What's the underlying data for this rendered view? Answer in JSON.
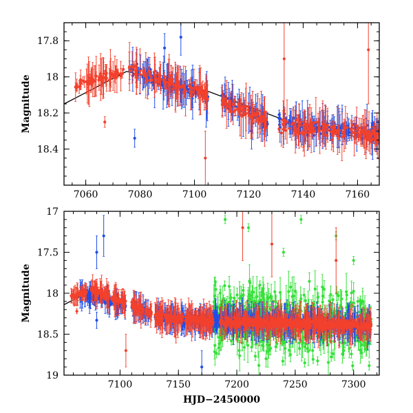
{
  "chart_data": [
    {
      "type": "scatter",
      "panel": "top",
      "title": "",
      "xlabel": "",
      "ylabel": "Magnitude",
      "xlim": [
        7052,
        7168
      ],
      "ylim": [
        17.7,
        18.6
      ],
      "y_inverted": true,
      "xticks": [
        "7060",
        "7080",
        "7100",
        "7120",
        "7140",
        "7160"
      ],
      "yticks": [
        "17.8",
        "18",
        "18.2",
        "18.4"
      ],
      "model_line": {
        "name": "model",
        "color": "#000000",
        "points": [
          [
            7052,
            18.15
          ],
          [
            7075,
            17.97
          ],
          [
            7105,
            18.08
          ],
          [
            7135,
            18.25
          ],
          [
            7168,
            18.36
          ]
        ]
      },
      "series": [
        {
          "name": "blue",
          "color": "#1f4ee6",
          "segments": [
            [
              7076,
              7105,
              17.95,
              18.12,
              0.05,
              0.02,
              0.14
            ],
            [
              7110,
              7127,
              18.12,
              18.25,
              0.05,
              0.02,
              0.14
            ],
            [
              7131,
              7168,
              18.25,
              18.32,
              0.06,
              0.02,
              0.14
            ]
          ],
          "outliers": [
            [
              7078,
              18.34,
              0.05
            ],
            [
              7089,
              17.84,
              0.08
            ],
            [
              7095,
              17.78,
              0.1
            ],
            [
              7121,
              18.3,
              0.1
            ]
          ]
        },
        {
          "name": "red",
          "color": "#f2412d",
          "segments": [
            [
              7056,
              7074,
              18.05,
              17.97,
              0.04,
              0.02,
              0.14
            ],
            [
              7076,
              7105,
              17.95,
              18.1,
              0.05,
              0.02,
              0.14
            ],
            [
              7110,
              7127,
              18.13,
              18.25,
              0.05,
              0.02,
              0.14
            ],
            [
              7131,
              7168,
              18.26,
              18.33,
              0.06,
              0.02,
              0.14
            ]
          ],
          "outliers": [
            [
              7067,
              18.25,
              0.03
            ],
            [
              7104,
              18.45,
              0.15
            ],
            [
              7133,
              17.9,
              0.3
            ],
            [
              7164,
              17.85,
              0.3
            ]
          ]
        }
      ]
    },
    {
      "type": "scatter",
      "panel": "bottom",
      "title": "",
      "xlabel": "HJD−2450000",
      "ylabel": "Magnitude",
      "xlim": [
        7052,
        7322
      ],
      "ylim": [
        17.0,
        19.0
      ],
      "y_inverted": true,
      "xticks": [
        "7100",
        "7150",
        "7200",
        "7250",
        "7300"
      ],
      "yticks": [
        "17",
        "17.5",
        "18",
        "18.5",
        "19"
      ],
      "model_line": {
        "name": "model",
        "color": "#000000",
        "points": [
          [
            7052,
            18.14
          ],
          [
            7075,
            17.97
          ],
          [
            7100,
            18.12
          ]
        ]
      },
      "series": [
        {
          "name": "green",
          "color": "#36e03a",
          "segments": [
            [
              7180,
              7315,
              18.3,
              18.4,
              0.6,
              0.05,
              0.25
            ]
          ],
          "outliers": [
            [
              7190,
              17.1,
              0.05
            ],
            [
              7210,
              17.2,
              0.05
            ],
            [
              7240,
              17.5,
              0.05
            ],
            [
              7255,
              17.1,
              0.05
            ],
            [
              7285,
              17.3,
              0.05
            ],
            [
              7300,
              17.6,
              0.05
            ],
            [
              7225,
              18.8,
              0.1
            ],
            [
              7265,
              18.7,
              0.1
            ]
          ]
        },
        {
          "name": "blue",
          "color": "#1f4ee6",
          "segments": [
            [
              7065,
              7105,
              18.0,
              18.15,
              0.06,
              0.02,
              0.2
            ],
            [
              7110,
              7127,
              18.15,
              18.25,
              0.06,
              0.02,
              0.2
            ],
            [
              7130,
              7180,
              18.28,
              18.35,
              0.07,
              0.03,
              0.2
            ],
            [
              7180,
              7315,
              18.32,
              18.4,
              0.1,
              0.03,
              0.25
            ]
          ],
          "outliers": [
            [
              7080,
              17.5,
              0.2
            ],
            [
              7080,
              18.33,
              0.1
            ],
            [
              7086,
              17.3,
              0.25
            ],
            [
              7170,
              18.9,
              0.2
            ]
          ]
        },
        {
          "name": "red",
          "color": "#f2412d",
          "segments": [
            [
              7058,
              7072,
              18.05,
              17.98,
              0.04,
              0.02,
              0.15
            ],
            [
              7075,
              7105,
              17.95,
              18.12,
              0.05,
              0.02,
              0.2
            ],
            [
              7110,
              7127,
              18.15,
              18.25,
              0.06,
              0.02,
              0.2
            ],
            [
              7130,
              7180,
              18.28,
              18.35,
              0.07,
              0.03,
              0.25
            ],
            [
              7185,
              7315,
              18.34,
              18.4,
              0.08,
              0.03,
              0.25
            ]
          ],
          "outliers": [
            [
              7063,
              18.22,
              0.03
            ],
            [
              7105,
              18.7,
              0.2
            ],
            [
              7205,
              17.2,
              0.4
            ],
            [
              7230,
              17.4,
              0.4
            ],
            [
              7285,
              17.6,
              0.4
            ]
          ]
        }
      ]
    }
  ]
}
